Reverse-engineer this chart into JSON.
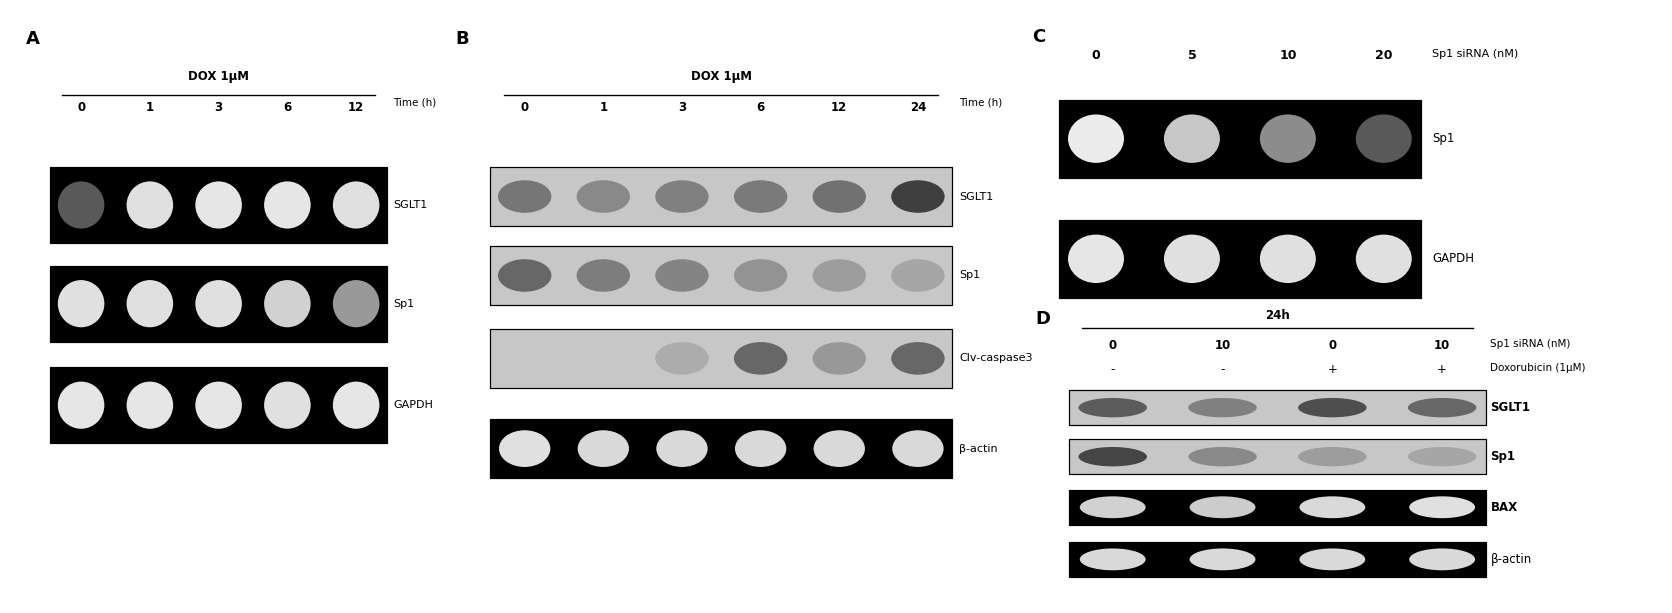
{
  "bg_color": "#ffffff",
  "panel_A": {
    "label": "A",
    "title": "DOX 1μM",
    "timepoints": [
      "0",
      "1",
      "3",
      "6",
      "12"
    ],
    "time_label": "Time (h)",
    "rows": [
      {
        "name": "SGLT1",
        "intensities": [
          0.35,
          0.88,
          0.9,
          0.9,
          0.88
        ],
        "dark": true
      },
      {
        "name": "Sp1",
        "intensities": [
          0.88,
          0.88,
          0.88,
          0.82,
          0.6
        ],
        "dark": true
      },
      {
        "name": "GAPDH",
        "intensities": [
          0.9,
          0.9,
          0.9,
          0.88,
          0.9
        ],
        "dark": true
      }
    ]
  },
  "panel_B": {
    "label": "B",
    "title": "DOX 1μM",
    "timepoints": [
      "0",
      "1",
      "3",
      "6",
      "12",
      "24"
    ],
    "time_label": "Time (h)",
    "rows": [
      {
        "name": "SGLT1",
        "intensities": [
          0.55,
          0.42,
          0.48,
          0.52,
          0.58,
          0.92
        ],
        "dark": false
      },
      {
        "name": "Sp1",
        "intensities": [
          0.65,
          0.5,
          0.45,
          0.35,
          0.28,
          0.22
        ],
        "dark": false
      },
      {
        "name": "Clv-caspase3",
        "intensities": [
          0.08,
          0.05,
          0.18,
          0.65,
          0.32,
          0.65
        ],
        "dark": false
      },
      {
        "name": "β-actin",
        "intensities": [
          0.88,
          0.85,
          0.85,
          0.85,
          0.85,
          0.85
        ],
        "dark": true
      }
    ]
  },
  "panel_C": {
    "label": "C",
    "concentrations": [
      "0",
      "5",
      "10",
      "20"
    ],
    "conc_label": "Sp1 siRNA (nM)",
    "rows": [
      {
        "name": "Sp1",
        "intensities": [
          0.92,
          0.78,
          0.55,
          0.35
        ],
        "dark": true
      },
      {
        "name": "GAPDH",
        "intensities": [
          0.9,
          0.88,
          0.88,
          0.88
        ],
        "dark": true
      }
    ]
  },
  "panel_D": {
    "label": "D",
    "title": "24h",
    "sirna_label": "Sp1 siRNA (nM)",
    "sirna_vals": [
      "0",
      "10",
      "0",
      "10"
    ],
    "dox_label": "Doxorubicin (1μM)",
    "dox_vals": [
      "-",
      "-",
      "+",
      "+"
    ],
    "rows": [
      {
        "name": "SGLT1",
        "intensities": [
          0.72,
          0.48,
          0.82,
          0.65
        ],
        "dark": false
      },
      {
        "name": "Sp1",
        "intensities": [
          0.88,
          0.42,
          0.28,
          0.22
        ],
        "dark": false
      },
      {
        "name": "BAX",
        "intensities": [
          0.82,
          0.8,
          0.85,
          0.88
        ],
        "dark": true
      },
      {
        "name": "β-actin",
        "intensities": [
          0.85,
          0.85,
          0.85,
          0.85
        ],
        "dark": true
      }
    ]
  }
}
